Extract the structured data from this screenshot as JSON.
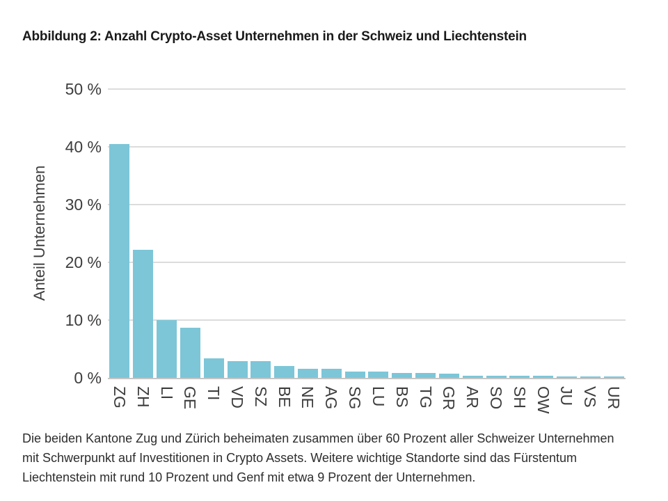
{
  "figure": {
    "title": "Abbildung 2: Anzahl Crypto-Asset Unternehmen in der Schweiz und Liechtenstein",
    "caption_lines": [
      "Die beiden Kantone Zug und Zürich beheimaten zusammen über 60 Prozent aller Schweizer Unternehmen",
      "mit Schwerpunkt auf Investitionen in Crypto Assets. Weitere wichtige Standorte sind das Fürstentum",
      "Liechtenstein mit rund 10 Prozent und Genf mit etwa 9 Prozent der Unternehmen."
    ]
  },
  "chart_data": {
    "type": "bar",
    "categories": [
      "ZG",
      "ZH",
      "LI",
      "GE",
      "TI",
      "VD",
      "SZ",
      "BE",
      "NE",
      "AG",
      "SG",
      "LU",
      "BS",
      "TG",
      "GR",
      "AR",
      "SO",
      "SH",
      "OW",
      "JU",
      "VS",
      "UR"
    ],
    "values": [
      40.5,
      22.2,
      10.0,
      8.7,
      3.4,
      2.9,
      2.9,
      2.1,
      1.6,
      1.6,
      1.1,
      1.1,
      0.9,
      0.9,
      0.7,
      0.4,
      0.4,
      0.4,
      0.4,
      0.3,
      0.3,
      0.3
    ],
    "title": "",
    "xlabel": "",
    "ylabel": "Anteil Unternehmen",
    "ylim": [
      0,
      50
    ],
    "yticks": [
      0,
      10,
      20,
      30,
      40,
      50
    ],
    "ytick_suffix": " %",
    "grid": true,
    "legend": false,
    "bar_color": "#7cc6d8",
    "gridline_color": "#dcdcdc",
    "axis_line_color": "#c6c6c6",
    "tick_label_color": "#3d3d3d"
  }
}
